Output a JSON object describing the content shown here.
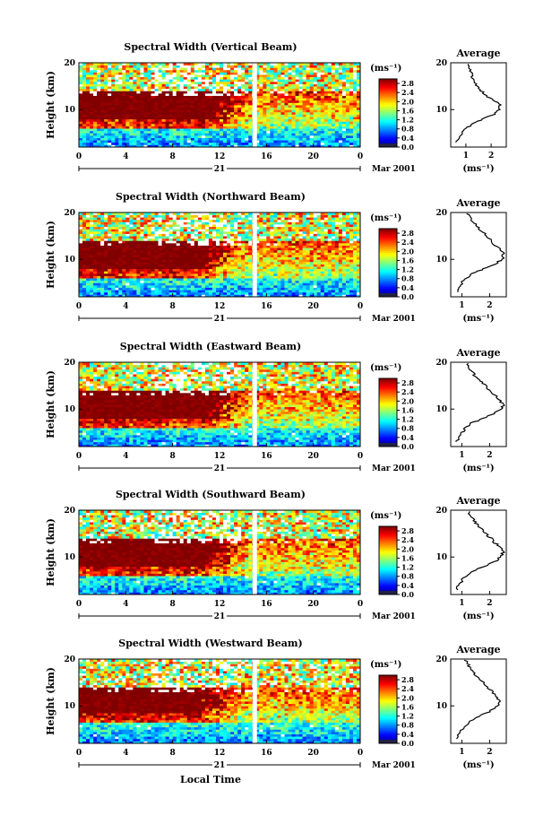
{
  "figure": {
    "xlabel": "Local Time",
    "unit_label": "(ms⁻¹)"
  },
  "chart_data": [
    {
      "type": "heatmap",
      "title": "Spectral Width (Vertical Beam)",
      "ylabel": "Height (km)",
      "x_ticks": [
        "0",
        "4",
        "8",
        "12",
        "16",
        "20",
        "0"
      ],
      "y_ticks": [
        "10",
        "20"
      ],
      "date_day": "21",
      "date_month": "Mar 2001",
      "xlim": [
        0,
        24
      ],
      "ylim": [
        2,
        20
      ],
      "colorbar": {
        "unit": "(ms⁻¹)",
        "ticks": [
          "2.8",
          "2.4",
          "2.0",
          "1.6",
          "1.2",
          "0.8",
          "0.4",
          "0.0"
        ],
        "range": [
          0,
          3.0
        ]
      },
      "data_gap_hour": 15,
      "strong_layer_km": [
        8,
        12.5
      ],
      "strong_until_hour": 11,
      "average": {
        "title": "Average",
        "xlabel": "(ms⁻¹)",
        "x_ticks": [
          "1",
          "2"
        ],
        "y_ticks": [
          "10",
          "20"
        ],
        "xlim": [
          0.4,
          2.6
        ],
        "height_km": [
          3,
          4,
          5,
          6,
          7,
          8,
          9,
          10,
          11,
          12,
          13,
          14,
          15,
          16,
          17,
          18,
          19,
          20
        ],
        "width_ms": [
          0.6,
          0.75,
          0.85,
          1.0,
          1.3,
          1.7,
          2.1,
          2.3,
          2.35,
          2.1,
          1.8,
          1.6,
          1.45,
          1.35,
          1.25,
          1.2,
          1.15,
          1.1
        ]
      }
    },
    {
      "type": "heatmap",
      "title": "Spectral Width (Northward Beam)",
      "ylabel": "Height (km)",
      "x_ticks": [
        "0",
        "4",
        "8",
        "12",
        "16",
        "20",
        "0"
      ],
      "y_ticks": [
        "10",
        "20"
      ],
      "date_day": "21",
      "date_month": "Mar 2001",
      "xlim": [
        0,
        24
      ],
      "ylim": [
        2,
        20
      ],
      "colorbar": {
        "unit": "(ms⁻¹)",
        "ticks": [
          "2.8",
          "2.4",
          "2.0",
          "1.6",
          "1.2",
          "0.8",
          "0.4",
          "0.0"
        ],
        "range": [
          0,
          3.0
        ]
      },
      "data_gap_hour": 15,
      "strong_layer_km": [
        8,
        13
      ],
      "strong_until_hour": 10,
      "average": {
        "title": "Average",
        "xlabel": "(ms⁻¹)",
        "x_ticks": [
          "1",
          "2"
        ],
        "y_ticks": [
          "10",
          "20"
        ],
        "xlim": [
          0.6,
          2.6
        ],
        "height_km": [
          3,
          4,
          5,
          6,
          7,
          8,
          9,
          10,
          11,
          12,
          13,
          14,
          15,
          16,
          17,
          18,
          19,
          20
        ],
        "width_ms": [
          0.8,
          0.9,
          1.0,
          1.15,
          1.4,
          1.8,
          2.2,
          2.45,
          2.5,
          2.4,
          2.2,
          2.05,
          1.9,
          1.7,
          1.55,
          1.4,
          1.3,
          1.2
        ]
      }
    },
    {
      "type": "heatmap",
      "title": "Spectral Width (Eastward Beam)",
      "ylabel": "Height (km)",
      "x_ticks": [
        "0",
        "4",
        "8",
        "12",
        "16",
        "20",
        "0"
      ],
      "y_ticks": [
        "10",
        "20"
      ],
      "date_day": "21",
      "date_month": "Mar 2001",
      "xlim": [
        0,
        24
      ],
      "ylim": [
        2,
        20
      ],
      "colorbar": {
        "unit": "(ms⁻¹)",
        "ticks": [
          "2.8",
          "2.4",
          "2.0",
          "1.6",
          "1.2",
          "0.8",
          "0.4",
          "0.0"
        ],
        "range": [
          0,
          3.0
        ]
      },
      "data_gap_hour": 15,
      "strong_layer_km": [
        8,
        13
      ],
      "strong_until_hour": 10.5,
      "average": {
        "title": "Average",
        "xlabel": "(ms⁻¹)",
        "x_ticks": [
          "1",
          "2"
        ],
        "y_ticks": [
          "10",
          "20"
        ],
        "xlim": [
          0.6,
          2.6
        ],
        "height_km": [
          3,
          4,
          5,
          6,
          7,
          8,
          9,
          10,
          11,
          12,
          13,
          14,
          15,
          16,
          17,
          18,
          19,
          20
        ],
        "width_ms": [
          0.8,
          0.9,
          1.0,
          1.15,
          1.35,
          1.75,
          2.15,
          2.4,
          2.5,
          2.35,
          2.2,
          2.0,
          1.85,
          1.7,
          1.5,
          1.35,
          1.25,
          1.15
        ]
      }
    },
    {
      "type": "heatmap",
      "title": "Spectral Width (Southward Beam)",
      "ylabel": "Height (km)",
      "x_ticks": [
        "0",
        "4",
        "8",
        "12",
        "16",
        "20",
        "0"
      ],
      "y_ticks": [
        "10",
        "20"
      ],
      "date_day": "21",
      "date_month": "Mar 2001",
      "xlim": [
        0,
        24
      ],
      "ylim": [
        2,
        20
      ],
      "colorbar": {
        "unit": "(ms⁻¹)",
        "ticks": [
          "2.8",
          "2.4",
          "2.0",
          "1.6",
          "1.2",
          "0.8",
          "0.4",
          "0.0"
        ],
        "range": [
          0,
          3.0
        ]
      },
      "data_gap_hour": 15,
      "strong_layer_km": [
        8,
        13
      ],
      "strong_until_hour": 10.5,
      "average": {
        "title": "Average",
        "xlabel": "(ms⁻¹)",
        "x_ticks": [
          "1",
          "2"
        ],
        "y_ticks": [
          "10",
          "20"
        ],
        "xlim": [
          0.6,
          2.6
        ],
        "height_km": [
          3,
          4,
          5,
          6,
          7,
          8,
          9,
          10,
          11,
          12,
          13,
          14,
          15,
          16,
          17,
          18,
          19,
          20
        ],
        "width_ms": [
          0.8,
          0.9,
          1.0,
          1.15,
          1.4,
          1.8,
          2.2,
          2.4,
          2.5,
          2.4,
          2.2,
          2.05,
          1.85,
          1.7,
          1.55,
          1.4,
          1.3,
          1.2
        ]
      }
    },
    {
      "type": "heatmap",
      "title": "Spectral Width (Westward Beam)",
      "ylabel": "Height (km)",
      "x_ticks": [
        "0",
        "4",
        "8",
        "12",
        "16",
        "20",
        "0"
      ],
      "y_ticks": [
        "10",
        "20"
      ],
      "date_day": "21",
      "date_month": "Mar 2001",
      "xlim": [
        0,
        24
      ],
      "ylim": [
        2,
        20
      ],
      "colorbar": {
        "unit": "(ms⁻¹)",
        "ticks": [
          "2.8",
          "2.4",
          "2.0",
          "1.6",
          "1.2",
          "0.8",
          "0.4",
          "0.0"
        ],
        "range": [
          0,
          3.0
        ]
      },
      "data_gap_hour": 15,
      "strong_layer_km": [
        8.5,
        12.5
      ],
      "strong_until_hour": 10,
      "average": {
        "title": "Average",
        "xlabel": "(ms⁻¹)",
        "x_ticks": [
          "1",
          "2"
        ],
        "y_ticks": [
          "10",
          "20"
        ],
        "xlim": [
          0.6,
          2.6
        ],
        "height_km": [
          3,
          4,
          5,
          6,
          7,
          8,
          9,
          10,
          11,
          12,
          13,
          14,
          15,
          16,
          17,
          18,
          19,
          20
        ],
        "width_ms": [
          0.8,
          0.9,
          1.0,
          1.15,
          1.35,
          1.7,
          2.05,
          2.3,
          2.35,
          2.25,
          2.1,
          1.9,
          1.75,
          1.6,
          1.45,
          1.3,
          1.2,
          1.1
        ]
      }
    }
  ]
}
